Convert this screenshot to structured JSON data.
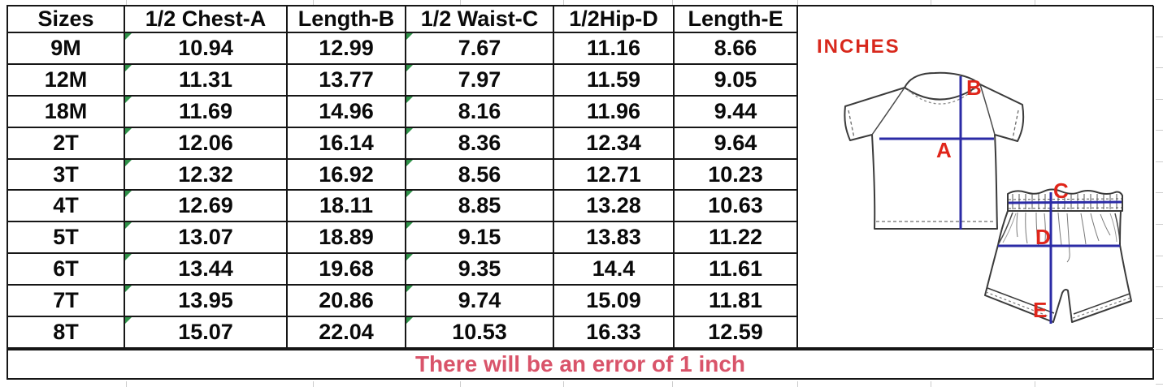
{
  "chart_data": {
    "type": "table",
    "unit": "INCHES",
    "columns": [
      "Sizes",
      "1/2 Chest-A",
      "Length-B",
      "1/2 Waist-C",
      "1/2Hip-D",
      "Length-E"
    ],
    "rows": [
      [
        "9M",
        10.94,
        12.99,
        7.67,
        11.16,
        8.66
      ],
      [
        "12M",
        11.31,
        13.77,
        7.97,
        11.59,
        9.05
      ],
      [
        "18M",
        11.69,
        14.96,
        8.16,
        11.96,
        9.44
      ],
      [
        "2T",
        12.06,
        16.14,
        8.36,
        12.34,
        9.64
      ],
      [
        "3T",
        12.32,
        16.92,
        8.56,
        12.71,
        10.23
      ],
      [
        "4T",
        12.69,
        18.11,
        8.85,
        13.28,
        10.63
      ],
      [
        "5T",
        13.07,
        18.89,
        9.15,
        13.83,
        11.22
      ],
      [
        "6T",
        13.44,
        19.68,
        9.35,
        14.4,
        11.61
      ],
      [
        "7T",
        13.95,
        20.86,
        9.74,
        15.09,
        11.81
      ],
      [
        "8T",
        15.07,
        22.04,
        10.53,
        16.33,
        12.59
      ]
    ],
    "note": "There will be an error of 1 inch"
  },
  "table_meta": {
    "flagged_value_columns": [
      1,
      3
    ]
  },
  "diagram": {
    "measure_labels": [
      "A",
      "B",
      "C",
      "D",
      "E"
    ],
    "garments": [
      "t-shirt",
      "shorts"
    ]
  },
  "colors": {
    "measure_line_blue": "#2b2ba6",
    "measure_label_red": "#e0251a",
    "unit_label_red": "#d8281c",
    "note_pink": "#d9546a",
    "flag_green": "#2e9148",
    "grid_black": "#161616",
    "faint_gridline": "#cccccc"
  }
}
